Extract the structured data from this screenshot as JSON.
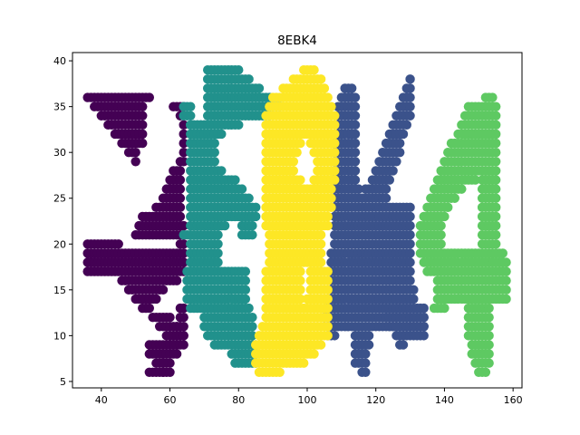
{
  "chart_data": {
    "type": "scatter",
    "title": "8EBK4",
    "xlabel": "",
    "ylabel": "",
    "xlim": [
      31.6,
      162.6
    ],
    "ylim": [
      4.3,
      40.9
    ],
    "grid": false,
    "legend": "none",
    "x_ticks": [
      40,
      60,
      80,
      100,
      120,
      140,
      160
    ],
    "y_ticks": [
      5,
      10,
      15,
      20,
      25,
      30,
      35,
      40
    ],
    "series": [
      {
        "color": "#440154",
        "runs": [
          [
            36,
            54,
            36
          ],
          [
            38,
            52,
            35
          ],
          [
            40,
            52,
            34
          ],
          [
            42,
            52,
            33
          ],
          [
            44,
            52,
            32
          ],
          [
            46,
            52,
            31
          ],
          [
            48,
            50,
            30
          ],
          [
            50,
            50,
            29
          ],
          [
            52,
            50,
            28
          ],
          [
            54,
            50,
            27
          ],
          [
            56,
            52,
            26
          ],
          [
            58,
            54,
            25
          ],
          [
            60,
            56,
            24
          ],
          [
            62,
            60,
            23
          ],
          [
            64,
            62,
            22
          ],
          [
            66,
            63,
            21
          ],
          [
            36,
            45,
            20
          ],
          [
            36,
            64,
            19
          ],
          [
            36,
            64,
            18
          ],
          [
            36,
            64,
            17
          ],
          [
            46,
            62,
            16
          ],
          [
            48,
            58,
            15
          ],
          [
            50,
            56,
            14
          ],
          [
            52,
            54,
            13
          ],
          [
            55,
            60,
            12
          ],
          [
            57,
            63,
            11
          ],
          [
            59,
            64,
            10
          ],
          [
            61,
            62,
            9
          ],
          [
            62,
            62,
            8
          ],
          [
            58,
            60,
            7
          ],
          [
            58,
            58,
            6
          ],
          [
            61,
            64,
            35
          ],
          [
            63,
            64,
            34
          ],
          [
            64,
            64,
            33
          ],
          [
            64,
            64,
            32
          ],
          [
            64,
            64,
            31
          ],
          [
            64,
            64,
            30
          ],
          [
            63,
            64,
            29
          ],
          [
            61,
            63,
            28
          ],
          [
            60,
            63,
            27
          ],
          [
            59,
            63,
            26
          ],
          [
            58,
            63,
            25
          ],
          [
            56,
            63,
            24
          ],
          [
            52,
            63,
            23
          ],
          [
            51,
            64,
            22
          ],
          [
            50,
            64,
            21
          ],
          [
            63,
            64,
            20
          ],
          [
            63,
            64,
            13
          ],
          [
            63,
            64,
            12
          ],
          [
            62,
            64,
            11
          ],
          [
            60,
            64,
            10
          ],
          [
            54,
            64,
            9
          ],
          [
            54,
            61,
            8
          ],
          [
            56,
            58,
            7
          ],
          [
            54,
            60,
            6
          ]
        ]
      },
      {
        "color": "#21918c",
        "runs": [
          [
            71,
            80,
            39
          ],
          [
            71,
            83,
            38
          ],
          [
            71,
            86,
            37
          ],
          [
            71,
            89,
            36
          ],
          [
            71,
            92,
            35
          ],
          [
            71,
            89,
            34
          ],
          [
            66,
            75,
            33
          ],
          [
            66,
            80,
            33
          ],
          [
            66,
            75,
            32
          ],
          [
            66,
            73,
            31
          ],
          [
            66,
            73,
            30
          ],
          [
            66,
            73,
            29
          ],
          [
            66,
            75,
            28
          ],
          [
            66,
            79,
            27
          ],
          [
            66,
            81,
            26
          ],
          [
            66,
            83,
            25
          ],
          [
            66,
            85,
            24
          ],
          [
            66,
            85,
            23
          ],
          [
            66,
            76,
            22
          ],
          [
            64,
            74,
            21
          ],
          [
            66,
            74,
            20
          ],
          [
            66,
            74,
            19
          ],
          [
            66,
            74,
            18
          ],
          [
            65,
            82,
            17
          ],
          [
            65,
            82,
            16
          ],
          [
            65,
            82,
            15
          ],
          [
            65,
            82,
            14
          ],
          [
            66,
            83,
            13
          ],
          [
            70,
            84,
            12
          ],
          [
            70,
            84,
            11
          ],
          [
            71,
            84,
            10
          ],
          [
            73,
            85,
            9
          ],
          [
            78,
            85,
            8
          ],
          [
            79,
            85,
            7
          ],
          [
            64,
            66,
            35
          ],
          [
            64,
            66,
            34
          ],
          [
            81,
            84,
            22
          ],
          [
            81,
            84,
            21
          ]
        ]
      },
      {
        "color": "#3b528b",
        "runs": [
          [
            111,
            113,
            37
          ],
          [
            110,
            114,
            36
          ],
          [
            109,
            114,
            35
          ],
          [
            109,
            114,
            34
          ],
          [
            109,
            114,
            33
          ],
          [
            109,
            114,
            32
          ],
          [
            108,
            114,
            31
          ],
          [
            108,
            114,
            30
          ],
          [
            108,
            114,
            29
          ],
          [
            108,
            114,
            28
          ],
          [
            108,
            114,
            27
          ],
          [
            108,
            115,
            26
          ],
          [
            108,
            123,
            25
          ],
          [
            108,
            130,
            24
          ],
          [
            108,
            130,
            23
          ],
          [
            108,
            130,
            22
          ],
          [
            108,
            130,
            21
          ],
          [
            108,
            130,
            20
          ],
          [
            107,
            130,
            19
          ],
          [
            107,
            130,
            18
          ],
          [
            107,
            130,
            17
          ],
          [
            107,
            130,
            16
          ],
          [
            107,
            131,
            15
          ],
          [
            106,
            131,
            14
          ],
          [
            106,
            134,
            13
          ],
          [
            105,
            134,
            12
          ],
          [
            107,
            134,
            11
          ],
          [
            114,
            118,
            10
          ],
          [
            114,
            118,
            9
          ],
          [
            114,
            117,
            8
          ],
          [
            114,
            117,
            7
          ],
          [
            116,
            117,
            6
          ],
          [
            130,
            130,
            38
          ],
          [
            129,
            130,
            37
          ],
          [
            128,
            130,
            36
          ],
          [
            127,
            130,
            35
          ],
          [
            126,
            130,
            34
          ],
          [
            125,
            129,
            33
          ],
          [
            124,
            128,
            32
          ],
          [
            123,
            127,
            31
          ],
          [
            122,
            127,
            30
          ],
          [
            121,
            126,
            29
          ],
          [
            120,
            125,
            28
          ],
          [
            119,
            124,
            27
          ],
          [
            117,
            123,
            26
          ],
          [
            123,
            134,
            12
          ],
          [
            124,
            134,
            11
          ],
          [
            126,
            134,
            10
          ],
          [
            127,
            128,
            9
          ],
          [
            106,
            108,
            10
          ]
        ]
      },
      {
        "color": "#fde725",
        "runs": [
          [
            99,
            102,
            39
          ],
          [
            96,
            104,
            38
          ],
          [
            93,
            105,
            37
          ],
          [
            90,
            106,
            36
          ],
          [
            89,
            107,
            35
          ],
          [
            88,
            108,
            34
          ],
          [
            88,
            108,
            33
          ],
          [
            88,
            108,
            32
          ],
          [
            88,
            98,
            31
          ],
          [
            101,
            108,
            31
          ],
          [
            88,
            97,
            30
          ],
          [
            102,
            108,
            30
          ],
          [
            88,
            96,
            29
          ],
          [
            103,
            108,
            29
          ],
          [
            88,
            96,
            28
          ],
          [
            103,
            108,
            28
          ],
          [
            88,
            98,
            27
          ],
          [
            102,
            108,
            27
          ],
          [
            88,
            107,
            26
          ],
          [
            88,
            107,
            25
          ],
          [
            88,
            107,
            24
          ],
          [
            88,
            106,
            23
          ],
          [
            88,
            106,
            22
          ],
          [
            89,
            104,
            21
          ],
          [
            89,
            104,
            20
          ],
          [
            89,
            104,
            19
          ],
          [
            89,
            104,
            18
          ],
          [
            88,
            98,
            17
          ],
          [
            101,
            106,
            17
          ],
          [
            88,
            98,
            16
          ],
          [
            101,
            106,
            16
          ],
          [
            88,
            98,
            15
          ],
          [
            101,
            106,
            15
          ],
          [
            88,
            98,
            14
          ],
          [
            100,
            106,
            14
          ],
          [
            88,
            106,
            13
          ],
          [
            88,
            106,
            12
          ],
          [
            87,
            106,
            11
          ],
          [
            86,
            106,
            10
          ],
          [
            85,
            104,
            9
          ],
          [
            85,
            102,
            8
          ],
          [
            85,
            99,
            7
          ],
          [
            86,
            92,
            6
          ]
        ]
      },
      {
        "color": "#5ec962",
        "runs": [
          [
            152,
            154,
            36
          ],
          [
            147,
            155,
            35
          ],
          [
            146,
            155,
            34
          ],
          [
            145,
            155,
            33
          ],
          [
            144,
            155,
            32
          ],
          [
            142,
            155,
            31
          ],
          [
            141,
            155,
            30
          ],
          [
            140,
            155,
            29
          ],
          [
            139,
            155,
            28
          ],
          [
            138,
            149,
            27
          ],
          [
            151,
            155,
            27
          ],
          [
            137,
            145,
            26
          ],
          [
            151,
            155,
            26
          ],
          [
            136,
            143,
            25
          ],
          [
            151,
            155,
            25
          ],
          [
            135,
            141,
            24
          ],
          [
            151,
            155,
            24
          ],
          [
            134,
            140,
            23
          ],
          [
            151,
            155,
            23
          ],
          [
            133,
            139,
            22
          ],
          [
            151,
            155,
            22
          ],
          [
            133,
            139,
            21
          ],
          [
            151,
            155,
            21
          ],
          [
            133,
            139,
            20
          ],
          [
            151,
            155,
            20
          ],
          [
            133,
            157,
            19
          ],
          [
            134,
            158,
            18
          ],
          [
            135,
            158,
            17
          ],
          [
            138,
            158,
            16
          ],
          [
            138,
            158,
            15
          ],
          [
            138,
            158,
            14
          ],
          [
            137,
            140,
            13
          ],
          [
            147,
            153,
            13
          ],
          [
            147,
            153,
            12
          ],
          [
            147,
            153,
            11
          ],
          [
            147,
            153,
            10
          ],
          [
            148,
            153,
            9
          ],
          [
            148,
            153,
            8
          ],
          [
            149,
            153,
            7
          ],
          [
            150,
            152,
            6
          ]
        ]
      }
    ]
  }
}
